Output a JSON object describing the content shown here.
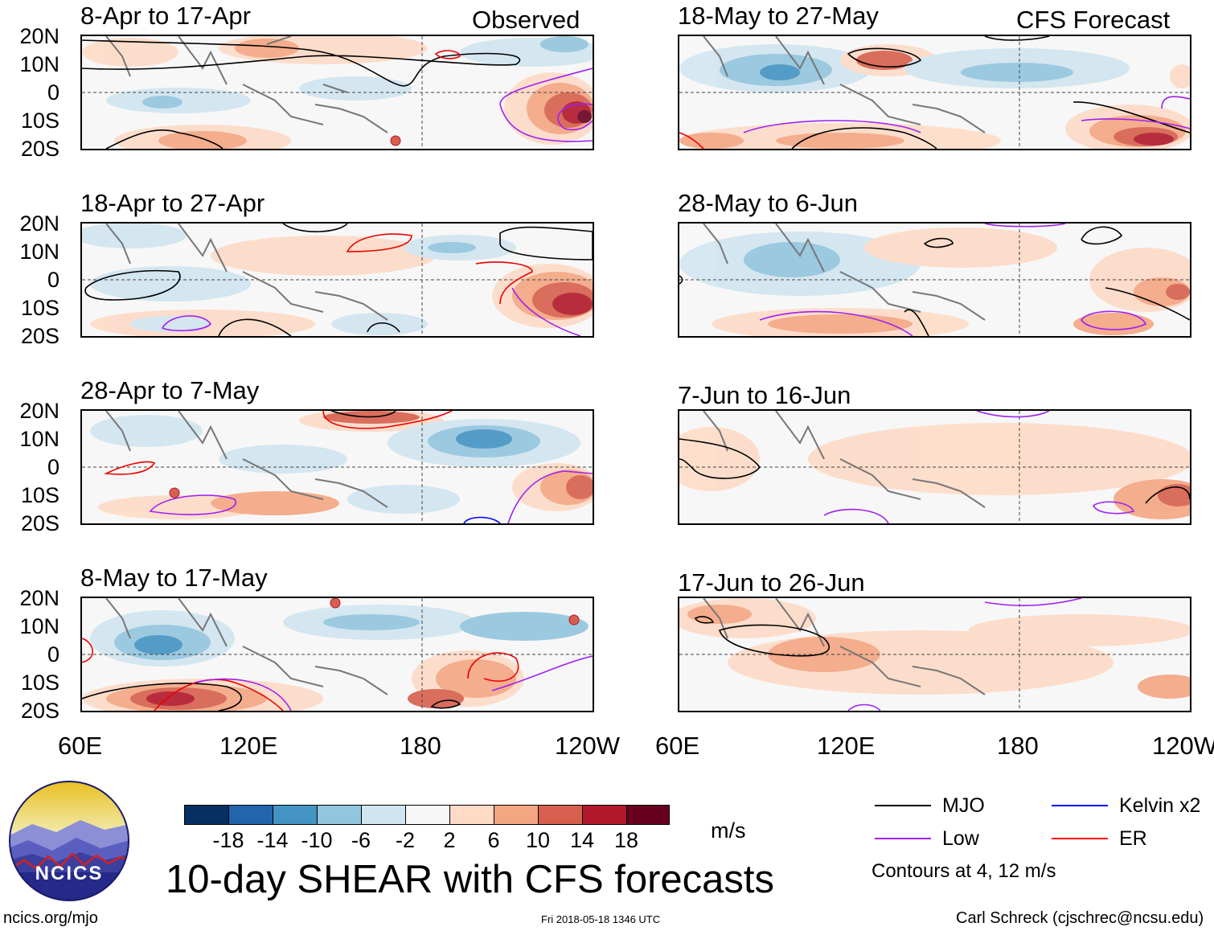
{
  "column_tags": {
    "left": "Observed",
    "right": "CFS Forecast"
  },
  "panels": [
    {
      "title": "8-Apr to 17-Apr"
    },
    {
      "title": "18-Apr to 27-Apr"
    },
    {
      "title": "28-Apr to 7-May"
    },
    {
      "title": "8-May to 17-May"
    },
    {
      "title": "18-May to 27-May"
    },
    {
      "title": "28-May to 6-Jun"
    },
    {
      "title": "7-Jun to 16-Jun"
    },
    {
      "title": "17-Jun to 26-Jun"
    }
  ],
  "lat_labels": [
    "20N",
    "10N",
    "0",
    "10S",
    "20S"
  ],
  "lon_labels": [
    "60E",
    "120E",
    "180",
    "120W"
  ],
  "colorbar": {
    "colors": [
      "#053061",
      "#2166ac",
      "#4393c3",
      "#92c5de",
      "#d1e5f0",
      "#f7f7f7",
      "#fddbc7",
      "#f4a582",
      "#d6604d",
      "#b2182b",
      "#67001f"
    ],
    "labels": [
      "-18",
      "-14",
      "-10",
      "-6",
      "-2",
      "2",
      "6",
      "10",
      "14",
      "18"
    ],
    "units": "m/s"
  },
  "legend": {
    "items": [
      {
        "label": "MJO",
        "color": "#000000"
      },
      {
        "label": "Kelvin x2",
        "color": "#0000ff"
      },
      {
        "label": "Low",
        "color": "#a020f0"
      },
      {
        "label": "ER",
        "color": "#ff0000"
      }
    ],
    "note": "Contours at 4, 12 m/s"
  },
  "logo_text": "NCICS",
  "main_title": "10-day SHEAR with CFS forecasts",
  "footer": {
    "left": "ncics.org/mjo",
    "center": "Fri 2018-05-18 1346 UTC",
    "right": "Carl Schreck (cjschrec@ncsu.edu)"
  }
}
